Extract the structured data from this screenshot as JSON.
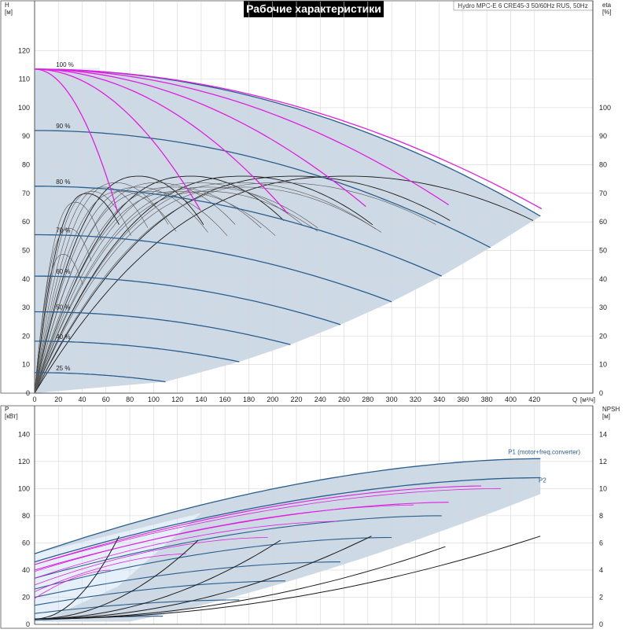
{
  "chart_data": [
    {
      "type": "line",
      "title": "Рабочие характеристики",
      "model": "Hydro MPC-E 6 CRE45-3 50/60Hz RUS, 50Hz",
      "ylabel_left": "H",
      "ylabel_left_unit": "[м]",
      "ylabel_right": "eta",
      "ylabel_right_unit": "[%]",
      "xlabel": "Q",
      "xlabel_unit": "[м³/ч]",
      "xlim": [
        0,
        440
      ],
      "ylim_left": [
        0,
        130
      ],
      "ylim_right": [
        0,
        130
      ],
      "x_ticks": [
        0,
        20,
        40,
        60,
        80,
        100,
        120,
        140,
        160,
        180,
        200,
        220,
        240,
        260,
        280,
        300,
        320,
        340,
        360,
        380,
        400,
        420
      ],
      "y_ticks_left": [
        0,
        10,
        20,
        30,
        40,
        50,
        60,
        70,
        80,
        90,
        100,
        110,
        120
      ],
      "y_ticks_right": [
        0,
        10,
        20,
        30,
        40,
        50,
        60,
        70,
        80,
        90,
        100
      ],
      "grid": true,
      "colors": {
        "envelope": "#cdd9e5",
        "envelope_light": "#e6f0fa",
        "head_curve": "#2a5e8c",
        "efficiency": "#1a1a1a",
        "max_speed": "#e020e0"
      },
      "speed_curves": [
        {
          "name": "100 %",
          "shutoff": 113.5,
          "end_q": 425
        },
        {
          "name": "90 %",
          "shutoff": 92,
          "end_q": 383
        },
        {
          "name": "80 %",
          "shutoff": 72.5,
          "end_q": 342
        },
        {
          "name": "70 %",
          "shutoff": 55.5,
          "end_q": 300
        },
        {
          "name": "60 %",
          "shutoff": 41,
          "end_q": 257
        },
        {
          "name": "50 %",
          "shutoff": 28.5,
          "end_q": 215
        },
        {
          "name": "40 %",
          "shutoff": 18.2,
          "end_q": 172
        },
        {
          "name": "25 %",
          "shutoff": 7.2,
          "end_q": 110
        }
      ],
      "envelope_max_q": 425,
      "envelope_bottom": [
        [
          0,
          0
        ],
        [
          110,
          4
        ],
        [
          172,
          11
        ],
        [
          215,
          17
        ],
        [
          257,
          24
        ],
        [
          300,
          32
        ],
        [
          342,
          41
        ],
        [
          383,
          51
        ],
        [
          425,
          62
        ]
      ],
      "pump_count": 6,
      "single_pump_max_q": 71,
      "eta_peak": 76,
      "eta_end": 59
    },
    {
      "type": "line",
      "ylabel_left": "P",
      "ylabel_left_unit": "[кВт]",
      "ylabel_right": "NPSH",
      "ylabel_right_unit": "[м]",
      "xlim": [
        0,
        440
      ],
      "ylim_left": [
        0,
        150
      ],
      "ylim_right": [
        0,
        15
      ],
      "x_ticks": [
        0,
        20,
        40,
        60,
        80,
        100,
        120,
        140,
        160,
        180,
        200,
        220,
        240,
        260,
        280,
        300,
        320,
        340,
        360,
        380,
        400,
        420
      ],
      "y_ticks_left": [
        0,
        20,
        40,
        60,
        80,
        100,
        120,
        140
      ],
      "y_ticks_right": [
        0,
        2,
        4,
        6,
        8,
        10,
        12,
        14
      ],
      "grid": true,
      "series": [
        {
          "name": "P1 (motor+freq.converter)",
          "start": 52,
          "end": 122,
          "end_q": 425
        },
        {
          "name": "P2",
          "start": 46,
          "end": 108,
          "end_q": 425
        }
      ],
      "power_levels": [
        {
          "start": 44,
          "end": 102,
          "end_q": 383
        },
        {
          "start": 40,
          "end": 90,
          "end_q": 355
        },
        {
          "start": 34,
          "end": 80,
          "end_q": 342
        },
        {
          "start": 26,
          "end": 64,
          "end_q": 300
        },
        {
          "start": 20,
          "end": 46,
          "end_q": 257
        },
        {
          "start": 14,
          "end": 32,
          "end_q": 215
        },
        {
          "start": 8,
          "end": 18,
          "end_q": 172
        },
        {
          "start": 3,
          "end": 6,
          "end_q": 110
        }
      ],
      "npsh_curves": [
        {
          "end_q": 71,
          "end": 6.5
        },
        {
          "end_q": 141,
          "end": 6.5
        },
        {
          "end_q": 212,
          "end": 6.5
        },
        {
          "end_q": 283,
          "end": 6.5
        },
        {
          "end_q": 354,
          "end": 6.0
        },
        {
          "end_q": 425,
          "end": 6.5
        }
      ]
    }
  ]
}
